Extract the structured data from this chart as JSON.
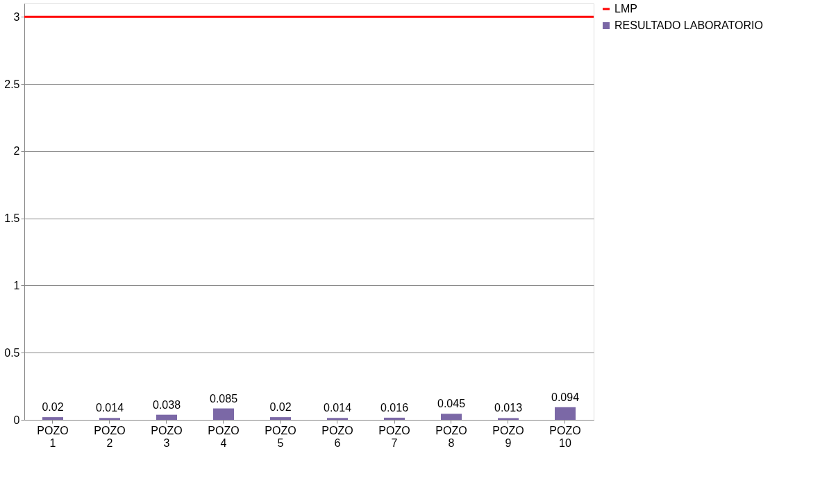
{
  "chart_data": {
    "type": "bar",
    "categories": [
      "POZO 1",
      "POZO 2",
      "POZO 3",
      "POZO 4",
      "POZO 5",
      "POZO 6",
      "POZO 7",
      "POZO 8",
      "POZO 9",
      "POZO 10"
    ],
    "series": [
      {
        "name": "RESULTADO LABORATORIO",
        "color": "#7b68a6",
        "values": [
          0.02,
          0.014,
          0.038,
          0.085,
          0.02,
          0.014,
          0.016,
          0.045,
          0.013,
          0.094
        ]
      }
    ],
    "ref_lines": [
      {
        "axis": "y",
        "value": 3,
        "label": "LMP",
        "color": "#ff0000"
      }
    ],
    "ylim": [
      0,
      3.1
    ],
    "yticks": [
      0,
      0.5,
      1,
      1.5,
      2,
      2.5,
      3
    ],
    "grid": "y",
    "legend": "right",
    "data_labels": true
  }
}
